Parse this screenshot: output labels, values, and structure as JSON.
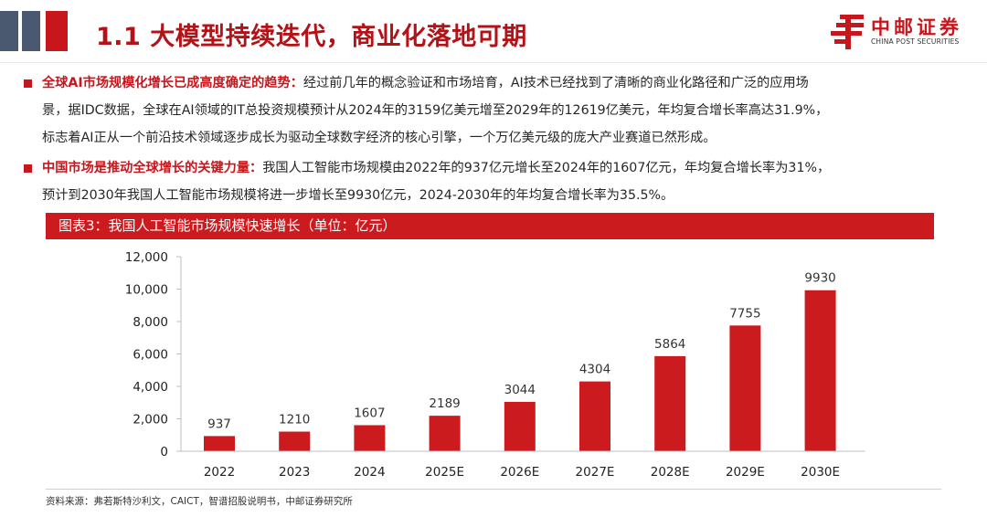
{
  "title": "1.1 大模型持续迭代，商业化落地可期",
  "logo": {
    "cn": "中邮证券",
    "en": "CHINA POST SECURITIES"
  },
  "colors": {
    "accent": "#c8161d",
    "bar": "#cc1b1f",
    "deco_dark": "#4a5970"
  },
  "paragraph1": {
    "highlight": "全球AI市场规模化增长已成高度确定的趋势：",
    "line1": "经过前几年的概念验证和市场培育，AI技术已经找到了清晰的商业化路径和广泛的应用场",
    "line2": "景，据IDC数据，全球在AI领域的IT总投资规模预计从2024年的3159亿美元增至2029年的12619亿美元，年均复合增长率高达31.9%，",
    "line3": "标志着AI正从一个前沿技术领域逐步成长为驱动全球数字经济的核心引擎，一个万亿美元级的庞大产业赛道已然形成。"
  },
  "paragraph2": {
    "highlight": "中国市场是推动全球增长的关键力量：",
    "line1": "我国人工智能市场规模由2022年的937亿元增长至2024年的1607亿元，年均复合增长率为31%，",
    "line2": "预计到2030年我国人工智能市场规模将进一步增长至9930亿元，2024-2030年的年均复合增长率为35.5%。"
  },
  "chart_header": "图表3：我国人工智能市场规模快速增长（单位：亿元）",
  "chart_data": {
    "type": "bar",
    "title": "我国人工智能市场规模快速增长（单位：亿元）",
    "categories": [
      "2022",
      "2023",
      "2024",
      "2025E",
      "2026E",
      "2027E",
      "2028E",
      "2029E",
      "2030E"
    ],
    "values": [
      937,
      1210,
      1607,
      2189,
      3044,
      4304,
      5864,
      7755,
      9930
    ],
    "value_labels": [
      "937",
      "1210",
      "1607",
      "2189",
      "3044",
      "4304",
      "5864",
      "7755",
      "9930"
    ],
    "y_ticks": [
      0,
      2000,
      4000,
      6000,
      8000,
      10000,
      12000
    ],
    "y_tick_labels": [
      "0",
      "2,000",
      "4,000",
      "6,000",
      "8,000",
      "10,000",
      "12,000"
    ],
    "ylim": [
      0,
      12000
    ],
    "xlabel": "",
    "ylabel": "",
    "grid": false
  },
  "source": "资料来源：弗若斯特沙利文，CAICT，智谱招股说明书，中邮证券研究所"
}
